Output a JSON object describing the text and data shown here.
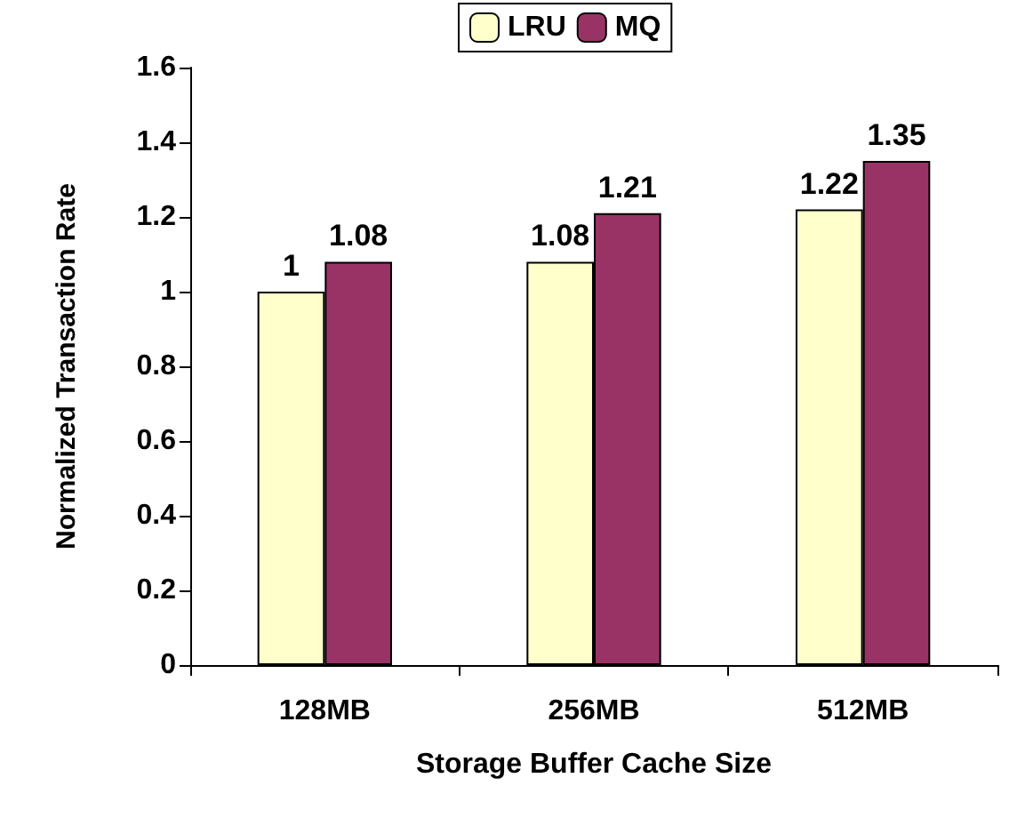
{
  "chart_data": {
    "type": "bar",
    "xlabel": "Storage Buffer Cache Size",
    "ylabel": "Normalized Transaction Rate",
    "categories": [
      "128MB",
      "256MB",
      "512MB"
    ],
    "series": [
      {
        "name": "LRU",
        "color": "#ffffcc",
        "values": [
          1,
          1.08,
          1.22
        ]
      },
      {
        "name": "MQ",
        "color": "#993366",
        "values": [
          1.08,
          1.21,
          1.35
        ]
      }
    ],
    "ylim": [
      0,
      1.6
    ],
    "yticks": [
      0,
      0.2,
      0.4,
      0.6,
      0.8,
      1,
      1.2,
      1.4,
      1.6
    ],
    "grid": false,
    "legend": "top",
    "data_labels": true
  }
}
